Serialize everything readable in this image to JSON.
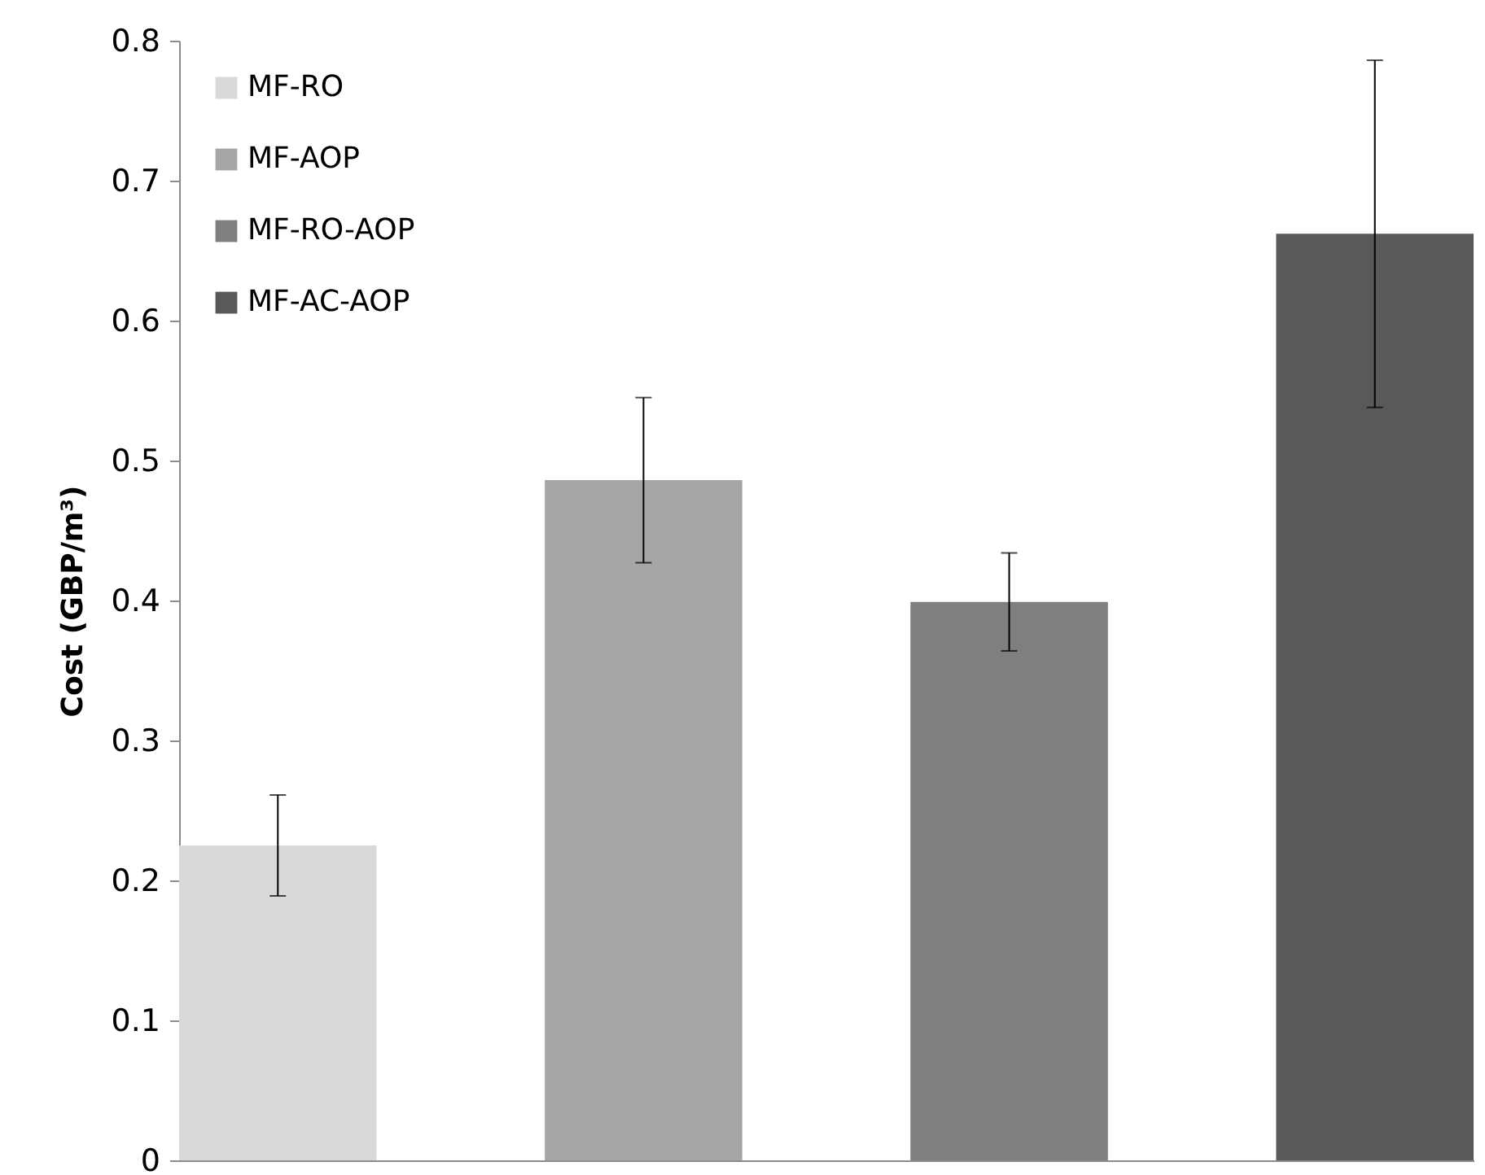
{
  "chart_data": {
    "type": "bar",
    "ylabel": "Cost  (GBP/m³)",
    "categories": [
      null,
      null,
      null,
      null
    ],
    "series": [
      {
        "name": "MF-RO",
        "color": "#d9d9d9",
        "values": [
          0.225,
          null,
          null,
          null
        ],
        "errors": [
          0.036,
          null,
          null,
          null
        ]
      },
      {
        "name": "MF-AOP",
        "color": "#a6a6a6",
        "values": [
          null,
          0.486,
          null,
          null
        ],
        "errors": [
          null,
          0.059,
          null,
          null
        ]
      },
      {
        "name": "MF-RO-AOP",
        "color": "#7f7f7f",
        "values": [
          null,
          null,
          0.399,
          null
        ],
        "errors": [
          null,
          null,
          0.035,
          null
        ]
      },
      {
        "name": "MF-AC-AOP",
        "color": "#595959",
        "values": [
          null,
          null,
          null,
          0.662
        ],
        "errors": [
          null,
          null,
          null,
          0.124
        ]
      }
    ],
    "ylim": [
      0,
      0.8
    ],
    "yticks": [
      0,
      0.1,
      0.2,
      0.3,
      0.4,
      0.5,
      0.6,
      0.7,
      0.8
    ],
    "legend": "top left",
    "tick_labels": "y"
  }
}
